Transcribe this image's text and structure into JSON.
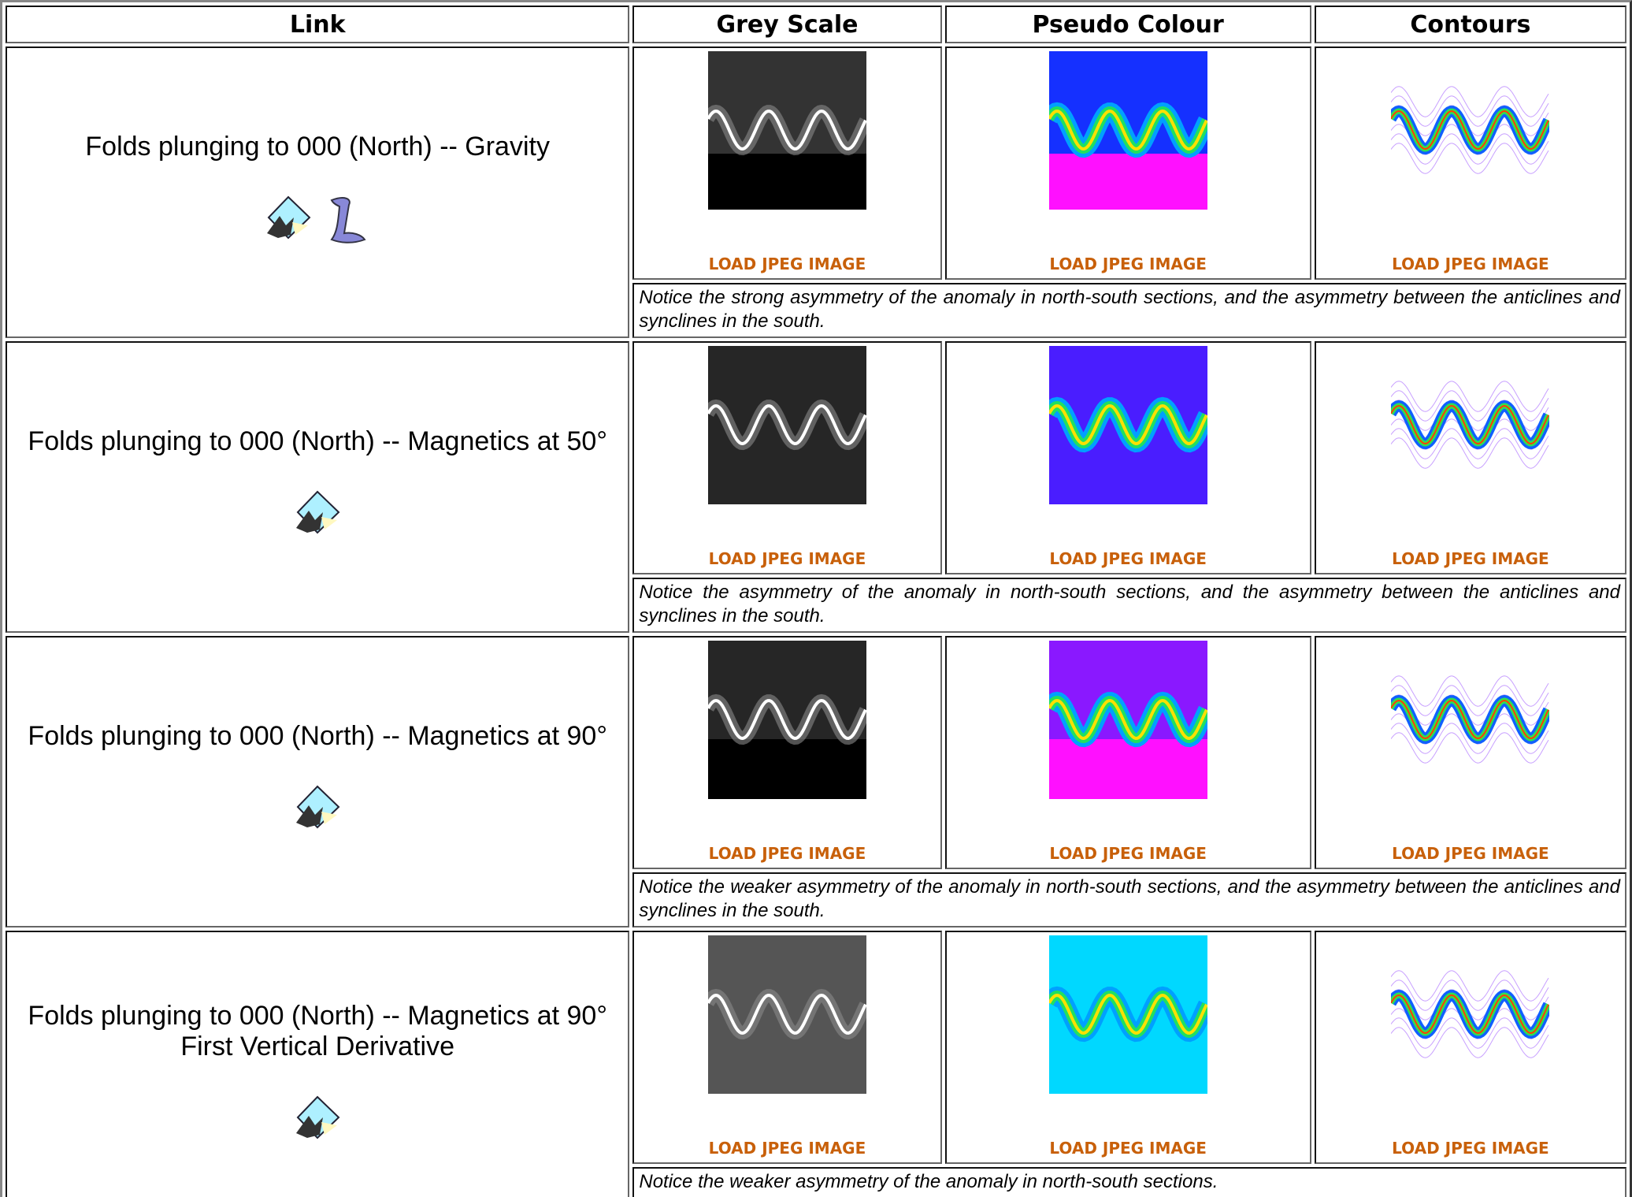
{
  "header": {
    "columns": [
      "Link",
      "Grey Scale",
      "Pseudo Colour",
      "Contours"
    ]
  },
  "rows": [
    {
      "link": "Folds plunging to 000 (North) -- Gravity",
      "loads": [
        "LOAD JPEG IMAGE",
        "LOAD JPEG IMAGE",
        "LOAD JPEG IMAGE"
      ],
      "notice": "Notice the strong asymmetry of the anomaly in north-south sections, and the asymmetry between the anticlines and synclines in the south."
    },
    {
      "link": "Folds plunging to 000 (North) -- Magnetics at 50°",
      "loads": [
        "LOAD JPEG IMAGE",
        "LOAD JPEG IMAGE",
        "LOAD JPEG IMAGE"
      ],
      "notice": "Notice the asymmetry of the anomaly in north-south sections, and the asymmetry between the anticlines and synclines in the south."
    },
    {
      "link": "Folds plunging to 000 (North) -- Magnetics at 90°",
      "loads": [
        "LOAD JPEG IMAGE",
        "LOAD JPEG IMAGE",
        "LOAD JPEG IMAGE"
      ],
      "notice": "Notice the weaker asymmetry of the anomaly in north-south sections, and the asymmetry between the anticlines and synclines in the south."
    },
    {
      "link": "Folds plunging to 000 (North) -- Magnetics at 90° First Vertical Derivative",
      "loads": [
        "LOAD JPEG IMAGE",
        "LOAD JPEG IMAGE",
        "LOAD JPEG IMAGE"
      ],
      "notice": "Notice the weaker asymmetry of the anomaly in north-south sections."
    }
  ]
}
